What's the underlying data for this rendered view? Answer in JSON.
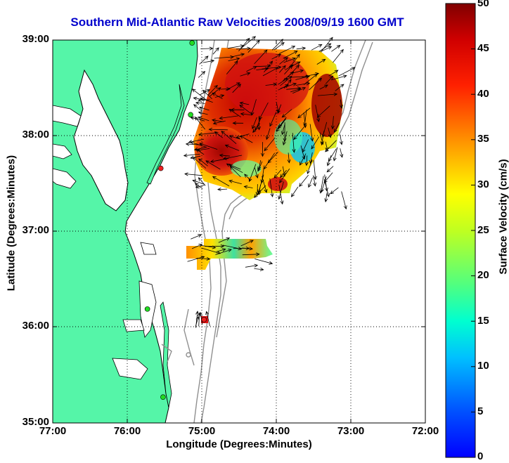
{
  "title": "Southern Mid-Atlantic Raw Velocities 2008/09/19 1600 GMT",
  "xlabel": "Longitude (Degrees:Minutes)",
  "ylabel": "Latitude (Degrees:Minutes)",
  "colorbar_label": "Surface Velocity (cm/s)",
  "x_ticks": [
    "77:00",
    "76:00",
    "75:00",
    "74:00",
    "73:00",
    "72:00"
  ],
  "y_ticks": [
    "39:00",
    "38:00",
    "37:00",
    "36:00",
    "35:00"
  ],
  "colorbar_ticks": [
    "50",
    "45",
    "40",
    "35",
    "30",
    "25",
    "20",
    "15",
    "10",
    "5",
    "0"
  ],
  "colors": {
    "land": "#55f5a8",
    "title": "#0000cc",
    "coast": "#000000",
    "isobath": "#909090",
    "station": "#22dd22"
  },
  "map": {
    "lon_range": [
      -77,
      -72
    ],
    "lat_range": [
      35,
      39
    ],
    "grid": true,
    "colorbar_range": [
      0,
      50
    ],
    "colormap": "jet",
    "stations": [
      {
        "lon": -75.13,
        "lat": 38.97,
        "color": "green"
      },
      {
        "lon": -75.15,
        "lat": 38.22,
        "color": "green"
      },
      {
        "lon": -75.55,
        "lat": 37.66,
        "color": "red"
      },
      {
        "lon": -75.73,
        "lat": 36.19,
        "color": "green"
      },
      {
        "lon": -75.52,
        "lat": 35.27,
        "color": "green"
      },
      {
        "lon": -74.97,
        "lat": 36.08,
        "color": "red"
      }
    ]
  }
}
